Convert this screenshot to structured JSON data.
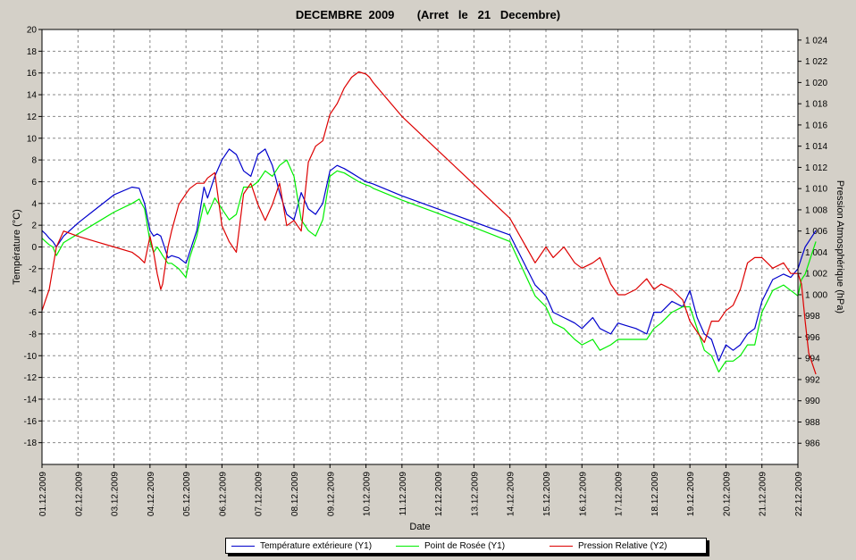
{
  "chart_data": {
    "type": "line",
    "title": "DECEMBRE  2009       (Arret   le   21   Decembre)",
    "xlabel": "Date",
    "ylabel_left": "Température (°C)",
    "ylabel_right": "Pression Atmosphérique (hPa)",
    "ylim_left": [
      -20,
      20
    ],
    "ylim_right": [
      984,
      1025
    ],
    "xlim": [
      "01.12.2009",
      "22.12.2009"
    ],
    "grid": true,
    "legend_position": "bottom",
    "x_ticks": [
      "01.12.2009",
      "02.12.2009",
      "03.12.2009",
      "04.12.2009",
      "05.12.2009",
      "06.12.2009",
      "07.12.2009",
      "08.12.2009",
      "09.12.2009",
      "10.12.2009",
      "11.12.2009",
      "12.12.2009",
      "13.12.2009",
      "14.12.2009",
      "15.12.2009",
      "16.12.2009",
      "17.12.2009",
      "18.12.2009",
      "19.12.2009",
      "20.12.2009",
      "21.12.2009",
      "22.12.2009"
    ],
    "y_ticks_left": [
      "20",
      "18",
      "16",
      "14",
      "12",
      "10",
      "8",
      "6",
      "4",
      "2",
      "0",
      "-2",
      "-4",
      "-6",
      "-8",
      "-10",
      "-12",
      "-14",
      "-16",
      "-18"
    ],
    "y_ticks_right": [
      "1 024",
      "1 022",
      "1 020",
      "1 018",
      "1 016",
      "1 014",
      "1 012",
      "1 010",
      "1 008",
      "1 006",
      "1 004",
      "1 002",
      "1 000",
      "998",
      "996",
      "994",
      "992",
      "990",
      "988",
      "986"
    ],
    "x_days": [
      0.0,
      0.1,
      0.2,
      0.3,
      0.4,
      0.6,
      1.0,
      1.5,
      2.0,
      2.5,
      2.7,
      2.85,
      3.0,
      3.1,
      3.2,
      3.3,
      3.35,
      3.5,
      3.6,
      3.8,
      4.0,
      4.1,
      4.3,
      4.5,
      4.6,
      4.8,
      5.0,
      5.2,
      5.4,
      5.6,
      5.8,
      6.0,
      6.2,
      6.4,
      6.6,
      6.8,
      7.0,
      7.2,
      7.4,
      7.6,
      7.8,
      8.0,
      8.2,
      8.4,
      8.6,
      8.8,
      9.0,
      9.1,
      9.2,
      10.0,
      11.0,
      12.0,
      13.0,
      13.7,
      14.0,
      14.2,
      14.5,
      14.8,
      15.0,
      15.3,
      15.5,
      15.8,
      16.0,
      16.2,
      16.5,
      16.8,
      17.0,
      17.2,
      17.5,
      17.8,
      18.0,
      18.2,
      18.4,
      18.6,
      18.8,
      19.0,
      19.2,
      19.4,
      19.6,
      19.8,
      20.0,
      20.3,
      20.6,
      20.8,
      21.0,
      21.1,
      21.2,
      21.3,
      21.4,
      21.5
    ],
    "series": [
      {
        "name": "Température extérieure (Y1)",
        "color": "#0000cc",
        "axis": "left",
        "values": [
          1.5,
          1.2,
          0.8,
          0.5,
          0.0,
          1.0,
          2.2,
          3.5,
          4.8,
          5.5,
          5.4,
          4.0,
          1.5,
          1.0,
          1.2,
          1.0,
          0.5,
          -1.0,
          -0.8,
          -1.0,
          -1.5,
          -0.5,
          1.5,
          5.5,
          4.5,
          6.5,
          8.0,
          9.0,
          8.5,
          7.0,
          6.5,
          8.5,
          9.0,
          7.5,
          5.0,
          3.0,
          2.5,
          5.0,
          3.5,
          3.0,
          4.0,
          7.0,
          7.5,
          7.2,
          6.8,
          6.4,
          6.0,
          5.9,
          5.8,
          4.7,
          3.5,
          2.3,
          1.1,
          -3.5,
          -4.5,
          -6.0,
          -6.5,
          -7.0,
          -7.5,
          -6.5,
          -7.5,
          -8.0,
          -7.0,
          -7.2,
          -7.5,
          -8.0,
          -6.0,
          -6.0,
          -5.0,
          -5.5,
          -4.0,
          -6.5,
          -8.0,
          -8.5,
          -10.5,
          -9.0,
          -9.5,
          -9.0,
          -8.0,
          -7.5,
          -5.0,
          -3.0,
          -2.5,
          -2.8,
          -2.0,
          -1.0,
          0.0,
          0.5,
          1.0,
          1.5
        ]
      },
      {
        "name": "Point de Rosée (Y1)",
        "color": "#00ee00",
        "axis": "left",
        "values": [
          0.8,
          0.5,
          0.2,
          0.0,
          -0.8,
          0.4,
          1.2,
          2.2,
          3.2,
          4.0,
          4.4,
          3.5,
          0.5,
          -0.5,
          0.0,
          -0.5,
          -0.8,
          -1.5,
          -1.5,
          -2.0,
          -2.8,
          -1.0,
          1.0,
          4.0,
          3.0,
          4.5,
          3.5,
          2.5,
          3.0,
          5.5,
          5.5,
          6.0,
          7.0,
          6.5,
          7.5,
          8.0,
          6.5,
          2.5,
          1.5,
          1.0,
          2.5,
          6.5,
          7.0,
          6.8,
          6.4,
          6.0,
          5.7,
          5.6,
          5.4,
          4.3,
          3.1,
          1.8,
          0.5,
          -4.5,
          -5.5,
          -7.0,
          -7.5,
          -8.5,
          -9.0,
          -8.5,
          -9.5,
          -9.0,
          -8.5,
          -8.5,
          -8.5,
          -8.5,
          -7.5,
          -7.0,
          -6.0,
          -5.5,
          -5.5,
          -7.5,
          -9.5,
          -10.0,
          -11.5,
          -10.5,
          -10.5,
          -10.0,
          -9.0,
          -9.0,
          -6.0,
          -4.0,
          -3.5,
          -4.0,
          -4.5,
          -3.0,
          -2.5,
          -1.5,
          -0.5,
          0.5
        ]
      },
      {
        "name": "Pression Relative (Y2)",
        "color": "#dd0000",
        "axis": "right",
        "values": [
          998.5,
          999.5,
          1000.5,
          1002.5,
          1004.5,
          1006.0,
          1005.5,
          1005.0,
          1004.5,
          1004.0,
          1003.5,
          1003.0,
          1005.5,
          1004.0,
          1002.0,
          1000.5,
          1001.0,
          1004.5,
          1006.0,
          1008.5,
          1009.5,
          1010.0,
          1010.5,
          1010.5,
          1011.0,
          1011.5,
          1006.5,
          1005.0,
          1004.0,
          1009.5,
          1010.5,
          1008.5,
          1007.0,
          1008.5,
          1010.5,
          1006.5,
          1007.0,
          1006.0,
          1012.5,
          1014.0,
          1014.5,
          1017.0,
          1018.0,
          1019.5,
          1020.5,
          1021.0,
          1020.8,
          1020.5,
          1020.0,
          1016.8,
          1013.6,
          1010.4,
          1007.2,
          1003.0,
          1004.5,
          1003.5,
          1004.5,
          1003.0,
          1002.5,
          1003.0,
          1003.5,
          1001.0,
          1000.0,
          1000.0,
          1000.5,
          1001.5,
          1000.5,
          1001.0,
          1000.5,
          999.5,
          997.5,
          996.5,
          995.5,
          997.5,
          997.5,
          998.5,
          999.0,
          1000.5,
          1003.0,
          1003.5,
          1003.5,
          1002.5,
          1003.0,
          1002.0,
          1002.0,
          1001.0,
          997.5,
          994.5,
          993.5,
          992.5
        ]
      }
    ]
  }
}
